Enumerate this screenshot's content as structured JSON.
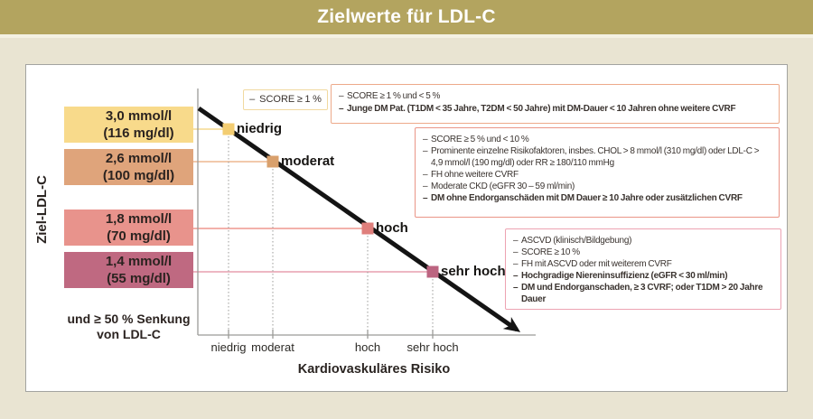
{
  "title": "Zielwerte für LDL-C",
  "chart": {
    "y_axis_label": "Ziel-LDL-C",
    "x_axis_label": "Kardiovaskuläres Risiko",
    "note_line1": "und ≥ 50 % Senkung",
    "note_line2": "von LDL-C"
  },
  "colors": {
    "page_bg": "#e9e4d2",
    "title_bar": "#b3a45f",
    "title_text": "#ffffff",
    "panel_border": "#a3a3a0",
    "axis": "#9b9b98",
    "trend_line": "#141414"
  },
  "risk_levels": [
    {
      "label": "niedrig",
      "target_mmol": "3,0 mmol/l",
      "target_mg": "(116 mg/dl)",
      "bar_color": "#f8da8b",
      "marker_color": "#f3cd72",
      "connector_color": "#f7e3ab",
      "box_border_color": "#f1d9a0",
      "criteria": [
        {
          "text": "SCORE ≥ 1 %",
          "bold": false
        }
      ]
    },
    {
      "label": "moderat",
      "target_mmol": "2,6 mmol/l",
      "target_mg": "(100 mg/dl)",
      "bar_color": "#dfa47b",
      "marker_color": "#d9a06c",
      "connector_color": "#f2c9ac",
      "box_border_color": "#eda98a",
      "criteria": [
        {
          "text": "SCORE ≥ 1 % und < 5 %",
          "bold": false
        },
        {
          "text": "Junge DM Pat. (T1DM < 35 Jahre, T2DM < 50 Jahre) mit DM-Dauer < 10 Jahren ohne weitere CVRF",
          "bold": true
        }
      ]
    },
    {
      "label": "hoch",
      "target_mmol": "1,8 mmol/l",
      "target_mg": "(70 mg/dl)",
      "bar_color": "#e8938c",
      "marker_color": "#df7f7c",
      "connector_color": "#f3b1ab",
      "box_border_color": "#ea9587",
      "criteria": [
        {
          "text": "SCORE ≥ 5 % und < 10 %",
          "bold": false
        },
        {
          "text": "Prominente einzelne Risikofaktoren, insbes. CHOL > 8 mmol/l (310 mg/dl) oder LDL-C > 4,9 mmol/l (190 mg/dl) oder RR ≥ 180/110 mmHg",
          "bold": false
        },
        {
          "text": "FH ohne weitere CVRF",
          "bold": false
        },
        {
          "text": "Moderate CKD (eGFR 30 – 59 ml/min)",
          "bold": false
        },
        {
          "text": "DM ohne Endorganschäden mit DM Dauer ≥ 10 Jahre oder zusätzlichen CVRF",
          "bold": true
        }
      ]
    },
    {
      "label": "sehr hoch",
      "target_mmol": "1,4 mmol/l",
      "target_mg": "(55 mg/dl)",
      "bar_color": "#bf6981",
      "marker_color": "#bc6480",
      "connector_color": "#edb7c3",
      "box_border_color": "#eda3b2",
      "criteria": [
        {
          "text": "ASCVD (klinisch/Bildgebung)",
          "bold": false
        },
        {
          "text": "SCORE ≥ 10 %",
          "bold": false
        },
        {
          "text": "FH mit ASCVD oder mit weiterem CVRF",
          "bold": false
        },
        {
          "text": "Hochgradige Niereninsuffizienz (eGFR < 30 ml/min)",
          "bold": true
        },
        {
          "text": "DM und Endorganschaden, ≥ 3 CVRF; oder T1DM > 20 Jahre Dauer",
          "bold": true
        }
      ]
    }
  ],
  "chart_data": {
    "type": "line",
    "title": "Zielwerte für LDL-C",
    "xlabel": "Kardiovaskuläres Risiko",
    "ylabel": "Ziel-LDL-C",
    "categories": [
      "niedrig",
      "moderat",
      "hoch",
      "sehr hoch"
    ],
    "series": [
      {
        "name": "Ziel-LDL-C (mmol/l)",
        "values": [
          3.0,
          2.6,
          1.8,
          1.4
        ]
      },
      {
        "name": "Ziel-LDL-C (mg/dl)",
        "values": [
          116,
          100,
          70,
          55
        ]
      }
    ],
    "trend": "decreasing",
    "grid": "off",
    "legend": "none",
    "note": "und ≥ 50 % Senkung von LDL-C",
    "annotations": [
      {
        "category": "niedrig",
        "items": [
          "SCORE ≥ 1 %"
        ]
      },
      {
        "category": "moderat",
        "items": [
          "SCORE ≥ 1 % und < 5 %",
          "Junge DM Pat. (T1DM < 35 Jahre, T2DM < 50 Jahre) mit DM-Dauer < 10 Jahren ohne weitere CVRF"
        ]
      },
      {
        "category": "hoch",
        "items": [
          "SCORE ≥ 5 % und < 10 %",
          "Prominente einzelne Risikofaktoren, insbes. CHOL > 8 mmol/l (310 mg/dl) oder LDL-C > 4,9 mmol/l (190 mg/dl) oder RR ≥ 180/110 mmHg",
          "FH ohne weitere CVRF",
          "Moderate CKD (eGFR 30 – 59 ml/min)",
          "DM ohne Endorganschäden mit DM Dauer ≥ 10 Jahre oder zusätzlichen CVRF"
        ]
      },
      {
        "category": "sehr hoch",
        "items": [
          "ASCVD (klinisch/Bildgebung)",
          "SCORE ≥ 10 %",
          "FH mit ASCVD oder mit weiterem CVRF",
          "Hochgradige Niereninsuffizienz (eGFR < 30 ml/min)",
          "DM und Endorganschaden, ≥ 3 CVRF; oder T1DM > 20 Jahre Dauer"
        ]
      }
    ]
  }
}
